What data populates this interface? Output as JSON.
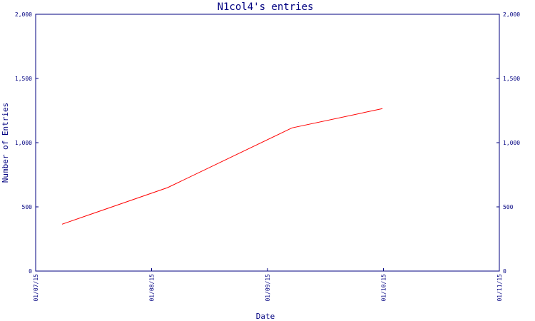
{
  "chart_data": {
    "type": "line",
    "title": "N1col4's entries",
    "xlabel": "Date",
    "ylabel": "Number of Entries",
    "x_ticks": [
      "01/07/15",
      "01/08/15",
      "01/09/15",
      "01/10/15",
      "01/11/15"
    ],
    "y_ticks": [
      "0",
      "500",
      "1,000",
      "1,500",
      "2,000"
    ],
    "ylim": [
      0,
      2000
    ],
    "xlim": [
      "2015-07-01",
      "2015-11-01"
    ],
    "grid": false,
    "series": [
      {
        "color": "#ff0000",
        "points": [
          {
            "x": "2015-07-08",
            "y": 365
          },
          {
            "x": "2015-08-05",
            "y": 650
          },
          {
            "x": "2015-09-07",
            "y": 1115
          },
          {
            "x": "2015-10-01",
            "y": 1265
          }
        ]
      }
    ],
    "axis_color": "#000080"
  }
}
